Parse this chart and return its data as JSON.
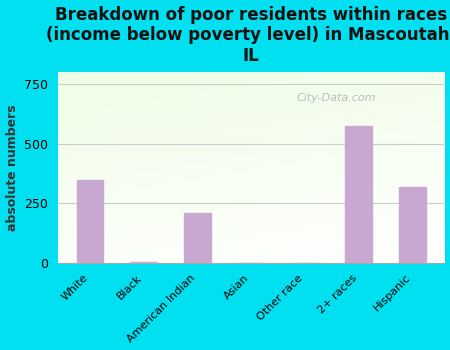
{
  "categories": [
    "White",
    "Black",
    "American Indian",
    "Asian",
    "Other race",
    "2+ races",
    "Hispanic"
  ],
  "values": [
    350,
    5,
    210,
    0,
    0,
    575,
    320
  ],
  "bar_color": "#c8a8d0",
  "title": "Breakdown of poor residents within races\n(income below poverty level) in Mascoutah,\nIL",
  "ylabel": "absolute numbers",
  "ylim": [
    0,
    800
  ],
  "yticks": [
    0,
    250,
    500,
    750
  ],
  "background_outer": "#00e0f0",
  "grid_color": "#cccccc",
  "watermark": "City-Data.com",
  "title_fontsize": 12,
  "bar_width": 0.5
}
